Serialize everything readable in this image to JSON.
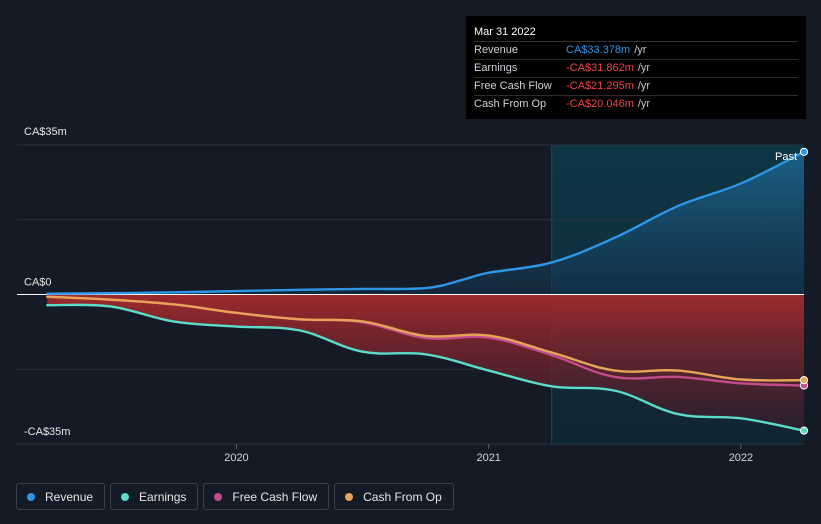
{
  "chart_data": {
    "type": "area",
    "x_ticks": [
      {
        "label": "2020",
        "value": 2020.0
      },
      {
        "label": "2021",
        "value": 2021.0
      },
      {
        "label": "2022",
        "value": 2022.0
      }
    ],
    "xlim": [
      2019.13,
      2022.25
    ],
    "ylim": [
      -35,
      35
    ],
    "y_labels": [
      {
        "label": "CA$35m",
        "value": 35
      },
      {
        "label": "CA$0",
        "value": 0
      },
      {
        "label": "-CA$35m",
        "value": -35
      }
    ],
    "past_start": 2021.25,
    "past_label": "Past",
    "series": [
      {
        "name": "Revenue",
        "color": "#2e96e6",
        "x": [
          2019.25,
          2019.5,
          2019.75,
          2020.0,
          2020.25,
          2020.5,
          2020.75,
          2020.9,
          2021.0,
          2021.25,
          2021.5,
          2021.75,
          2022.0,
          2022.25
        ],
        "values": [
          0.2,
          0.3,
          0.5,
          0.8,
          1.1,
          1.3,
          1.5,
          3.5,
          5.1,
          7.5,
          13.3,
          20.7,
          26.0,
          33.4
        ]
      },
      {
        "name": "Earnings",
        "color": "#5ddbc9",
        "x": [
          2019.25,
          2019.5,
          2019.75,
          2020.0,
          2020.25,
          2020.5,
          2020.75,
          2021.0,
          2021.25,
          2021.5,
          2021.75,
          2022.0,
          2022.25
        ],
        "values": [
          -2.5,
          -2.8,
          -6.3,
          -7.5,
          -8.4,
          -13.4,
          -14.0,
          -17.8,
          -21.5,
          -22.5,
          -28.0,
          -29.0,
          -31.862
        ]
      },
      {
        "name": "Free Cash Flow",
        "color": "#c34b8e",
        "x": [
          2019.25,
          2019.5,
          2019.75,
          2020.0,
          2020.25,
          2020.5,
          2020.75,
          2021.0,
          2021.25,
          2021.5,
          2021.75,
          2022.0,
          2022.25
        ],
        "values": [
          -0.5,
          -1.2,
          -2.3,
          -4.3,
          -5.8,
          -6.5,
          -10.2,
          -10.1,
          -14.2,
          -19.3,
          -19.3,
          -20.8,
          -21.295
        ]
      },
      {
        "name": "Cash From Op",
        "color": "#e8a456",
        "x": [
          2019.25,
          2019.5,
          2019.75,
          2020.0,
          2020.25,
          2020.5,
          2020.75,
          2021.0,
          2021.25,
          2021.5,
          2021.75,
          2022.0,
          2022.25
        ],
        "values": [
          -0.5,
          -1.2,
          -2.3,
          -4.3,
          -5.8,
          -6.3,
          -9.7,
          -9.6,
          -13.6,
          -17.8,
          -17.8,
          -19.9,
          -20.046
        ]
      }
    ]
  },
  "tooltip": {
    "date": "Mar 31 2022",
    "unit": "/yr",
    "rows": [
      {
        "name": "Revenue",
        "value": "CA$33.378m",
        "color": "#2e96e6"
      },
      {
        "name": "Earnings",
        "value": "-CA$31.862m",
        "color": "#ef4444"
      },
      {
        "name": "Free Cash Flow",
        "value": "-CA$21.295m",
        "color": "#ef4444"
      },
      {
        "name": "Cash From Op",
        "value": "-CA$20.046m",
        "color": "#ef4444"
      }
    ]
  },
  "legend": [
    {
      "label": "Revenue",
      "color": "#2e96e6"
    },
    {
      "label": "Earnings",
      "color": "#5ddbc9"
    },
    {
      "label": "Free Cash Flow",
      "color": "#c34b8e"
    },
    {
      "label": "Cash From Op",
      "color": "#e8a456"
    }
  ]
}
